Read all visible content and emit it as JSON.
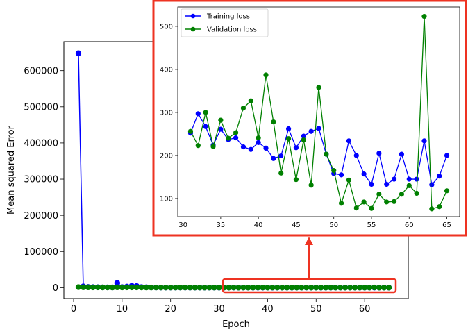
{
  "chart_data": [
    {
      "type": "line",
      "xlabel": "Epoch",
      "ylabel": "Mean squared Error",
      "xlim": [
        -2,
        69
      ],
      "ylim": [
        -30000,
        680000
      ],
      "xticks": [
        0,
        10,
        20,
        30,
        40,
        50,
        60
      ],
      "yticks": [
        0,
        100000,
        200000,
        300000,
        400000,
        500000,
        600000
      ],
      "grid": false,
      "series": [
        {
          "color": "#0000ff",
          "x": [
            1,
            2,
            3,
            4,
            5,
            6,
            7,
            8,
            9,
            10,
            11,
            12,
            13,
            14,
            15,
            16,
            17,
            18,
            19,
            20,
            21,
            22,
            23,
            24,
            25,
            26,
            27,
            28,
            29,
            30,
            31,
            32,
            33,
            34,
            35,
            36,
            37,
            38,
            39,
            40,
            41,
            42,
            43,
            44,
            45,
            46,
            47,
            48,
            49,
            50,
            51,
            52,
            53,
            54,
            55,
            56,
            57,
            58,
            59,
            60,
            61,
            62,
            63,
            64,
            65
          ],
          "y": [
            648000,
            3500,
            2000,
            1500,
            1200,
            900,
            800,
            700,
            13000,
            1500,
            3000,
            5000,
            4500,
            1500,
            1000,
            600,
            500,
            400,
            400,
            350,
            320,
            310,
            300,
            290,
            280,
            275,
            270,
            265,
            262,
            258,
            252,
            297,
            267,
            224,
            261,
            237,
            241,
            220,
            214,
            230,
            217,
            193,
            199,
            262,
            218,
            245,
            256,
            263,
            203,
            158,
            155,
            234,
            200,
            157,
            133,
            205,
            133,
            145,
            203,
            145,
            145,
            234,
            132,
            152,
            200
          ]
        },
        {
          "color": "#008000",
          "x": [
            1,
            2,
            3,
            4,
            5,
            6,
            7,
            8,
            9,
            10,
            11,
            12,
            13,
            14,
            15,
            16,
            17,
            18,
            19,
            20,
            21,
            22,
            23,
            24,
            25,
            26,
            27,
            28,
            29,
            30,
            31,
            32,
            33,
            34,
            35,
            36,
            37,
            38,
            39,
            40,
            41,
            42,
            43,
            44,
            45,
            46,
            47,
            48,
            49,
            50,
            51,
            52,
            53,
            54,
            55,
            56,
            57,
            58,
            59,
            60,
            61,
            62,
            63,
            64,
            65
          ],
          "y": [
            1500,
            1200,
            1000,
            900,
            800,
            700,
            600,
            500,
            1000,
            700,
            800,
            900,
            800,
            600,
            500,
            400,
            380,
            360,
            340,
            330,
            320,
            310,
            300,
            290,
            285,
            280,
            275,
            270,
            265,
            262,
            256,
            223,
            300,
            221,
            282,
            240,
            253,
            310,
            327,
            241,
            387,
            278,
            159,
            239,
            144,
            236,
            131,
            358,
            203,
            165,
            89,
            143,
            78,
            92,
            77,
            110,
            92,
            93,
            110,
            130,
            112,
            523,
            76,
            81,
            118
          ]
        }
      ]
    },
    {
      "type": "line",
      "xlim": [
        29.3,
        66.7
      ],
      "ylim": [
        58,
        545
      ],
      "xticks": [
        30,
        35,
        40,
        45,
        50,
        55,
        60,
        65
      ],
      "yticks": [
        100,
        200,
        300,
        400,
        500
      ],
      "grid": false,
      "legend_placement": "top-left",
      "series": [
        {
          "name": "Training loss",
          "color": "#0000ff",
          "x": [
            31,
            32,
            33,
            34,
            35,
            36,
            37,
            38,
            39,
            40,
            41,
            42,
            43,
            44,
            45,
            46,
            47,
            48,
            49,
            50,
            51,
            52,
            53,
            54,
            55,
            56,
            57,
            58,
            59,
            60,
            61,
            62,
            63,
            64,
            65
          ],
          "y": [
            252,
            297,
            267,
            224,
            261,
            237,
            241,
            220,
            214,
            230,
            217,
            193,
            199,
            262,
            218,
            245,
            256,
            263,
            203,
            158,
            155,
            234,
            200,
            157,
            133,
            205,
            133,
            145,
            203,
            145,
            145,
            234,
            132,
            152,
            200
          ]
        },
        {
          "name": "Validation loss",
          "color": "#008000",
          "x": [
            31,
            32,
            33,
            34,
            35,
            36,
            37,
            38,
            39,
            40,
            41,
            42,
            43,
            44,
            45,
            46,
            47,
            48,
            49,
            50,
            51,
            52,
            53,
            54,
            55,
            56,
            57,
            58,
            59,
            60,
            61,
            62,
            63,
            64,
            65
          ],
          "y": [
            256,
            223,
            300,
            221,
            282,
            240,
            253,
            310,
            327,
            241,
            387,
            278,
            159,
            239,
            144,
            236,
            131,
            358,
            203,
            165,
            89,
            143,
            78,
            92,
            77,
            110,
            92,
            93,
            110,
            130,
            112,
            523,
            76,
            81,
            118
          ]
        }
      ]
    }
  ],
  "highlight_color": "#ee3322"
}
